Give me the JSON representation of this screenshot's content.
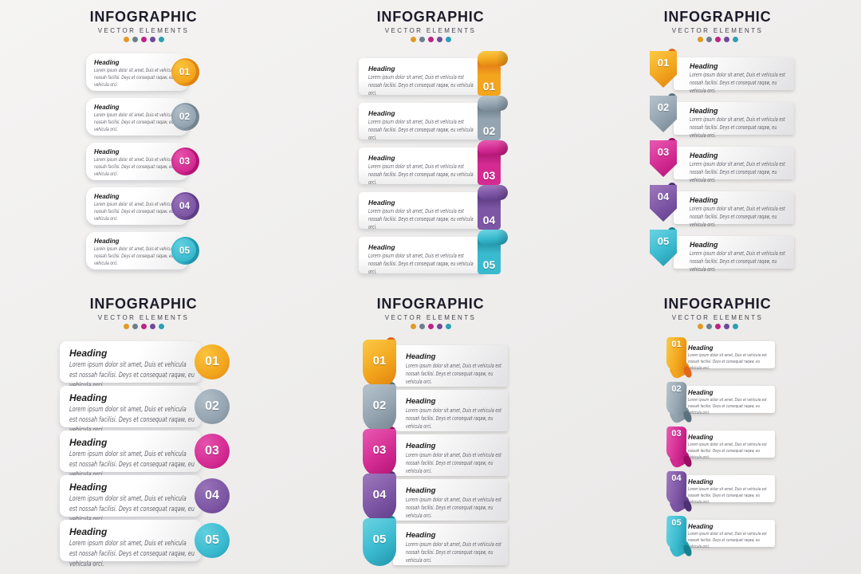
{
  "palette": [
    {
      "name": "orange",
      "main": "#F2A51D",
      "dark": "#E0800F",
      "light": "#FAC33E",
      "deep": "#E2661B",
      "dot": "#E29A26"
    },
    {
      "name": "slate",
      "main": "#94A4B1",
      "dark": "#73848F",
      "light": "#B0BEC7",
      "deep": "#5C6F7C",
      "dot": "#6B7F8C"
    },
    {
      "name": "magenta",
      "main": "#D42B92",
      "dark": "#B01374",
      "light": "#E452AC",
      "deep": "#9A0F63",
      "dot": "#BD2483"
    },
    {
      "name": "purple",
      "main": "#7D56A5",
      "dark": "#5E3D86",
      "light": "#9873B8",
      "deep": "#4E3172",
      "dot": "#6F4B97"
    },
    {
      "name": "teal",
      "main": "#3ABACF",
      "dark": "#2094AA",
      "light": "#62CFDF",
      "deep": "#17818F",
      "dot": "#2E9EB3"
    }
  ],
  "panels": [
    {
      "title": "INFOGRAPHIC",
      "subtitle": "VECTOR ELEMENTS",
      "items": [
        {
          "number": "01",
          "heading": "Heading",
          "body": "Lorem ipsum dolor sit amet, Duis et vehicula est nossah facilisi. Deys et consequat raqaw, eu vehicula orci."
        },
        {
          "number": "02",
          "heading": "Heading",
          "body": "Lorem ipsum dolor sit amet, Duis et vehicula est nossah facilisi. Deys et consequat raqaw, eu vehicula orci."
        },
        {
          "number": "03",
          "heading": "Heading",
          "body": "Lorem ipsum dolor sit amet, Duis et vehicula est nossah facilisi. Deys et consequat raqaw, eu vehicula orci."
        },
        {
          "number": "04",
          "heading": "Heading",
          "body": "Lorem ipsum dolor sit amet, Duis et vehicula est nossah facilisi. Deys et consequat raqaw, eu vehicula orci."
        },
        {
          "number": "05",
          "heading": "Heading",
          "body": "Lorem ipsum dolor sit amet, Duis et vehicula est nossah facilisi. Deys et consequat raqaw, eu vehicula orci."
        }
      ]
    },
    {
      "title": "INFOGRAPHIC",
      "subtitle": "VECTOR ELEMENTS",
      "items": [
        {
          "number": "01",
          "heading": "Heading",
          "body": "Lorem ipsum dolor sit amet, Duis et vehicula est nossah facilisi. Deys et consequat raqaw, eu vehicula orci."
        },
        {
          "number": "02",
          "heading": "Heading",
          "body": "Lorem ipsum dolor sit amet, Duis et vehicula est nossah facilisi. Deys et consequat raqaw, eu vehicula orci."
        },
        {
          "number": "03",
          "heading": "Heading",
          "body": "Lorem ipsum dolor sit amet, Duis et vehicula est nossah facilisi. Deys et consequat raqaw, eu vehicula orci."
        },
        {
          "number": "04",
          "heading": "Heading",
          "body": "Lorem ipsum dolor sit amet, Duis et vehicula est nossah facilisi. Deys et consequat raqaw, eu vehicula orci."
        },
        {
          "number": "05",
          "heading": "Heading",
          "body": "Lorem ipsum dolor sit amet, Duis et vehicula est nossah facilisi. Deys et consequat raqaw, eu vehicula orci."
        }
      ]
    },
    {
      "title": "INFOGRAPHIC",
      "subtitle": "VECTOR ELEMENTS",
      "items": [
        {
          "number": "01",
          "heading": "Heading",
          "body": "Lorem ipsum dolor sit amet, Duis et vehicula est nossah facilisi. Deys et consequat raqaw, eu vehicula orci."
        },
        {
          "number": "02",
          "heading": "Heading",
          "body": "Lorem ipsum dolor sit amet, Duis et vehicula est nossah facilisi. Deys et consequat raqaw, eu vehicula orci."
        },
        {
          "number": "03",
          "heading": "Heading",
          "body": "Lorem ipsum dolor sit amet, Duis et vehicula est nossah facilisi. Deys et consequat raqaw, eu vehicula orci."
        },
        {
          "number": "04",
          "heading": "Heading",
          "body": "Lorem ipsum dolor sit amet, Duis et vehicula est nossah facilisi. Deys et consequat raqaw, eu vehicula orci."
        },
        {
          "number": "05",
          "heading": "Heading",
          "body": "Lorem ipsum dolor sit amet, Duis et vehicula est nossah facilisi. Deys et consequat raqaw, eu vehicula orci."
        }
      ]
    },
    {
      "title": "INFOGRAPHIC",
      "subtitle": "VECTOR ELEMENTS",
      "items": [
        {
          "number": "01",
          "heading": "Heading",
          "body": "Lorem ipsum dolor sit amet, Duis et vehicula est nossah facilisi. Deys et consequat raqaw, eu vehicula orci."
        },
        {
          "number": "02",
          "heading": "Heading",
          "body": "Lorem ipsum dolor sit amet, Duis et vehicula est nossah facilisi. Deys et consequat raqaw, eu vehicula orci."
        },
        {
          "number": "03",
          "heading": "Heading",
          "body": "Lorem ipsum dolor sit amet, Duis et vehicula est nossah facilisi. Deys et consequat raqaw, eu vehicula orci."
        },
        {
          "number": "04",
          "heading": "Heading",
          "body": "Lorem ipsum dolor sit amet, Duis et vehicula est nossah facilisi. Deys et consequat raqaw, eu vehicula orci."
        },
        {
          "number": "05",
          "heading": "Heading",
          "body": "Lorem ipsum dolor sit amet, Duis et vehicula est nossah facilisi. Deys et consequat raqaw, eu vehicula orci."
        }
      ]
    },
    {
      "title": "INFOGRAPHIC",
      "subtitle": "VECTOR ELEMENTS",
      "items": [
        {
          "number": "01",
          "heading": "Heading",
          "body": "Lorem ipsum dolor sit amet, Duis et vehicula est nossah facilisi. Deys et consequat raqaw, eu vehicula orci."
        },
        {
          "number": "02",
          "heading": "Heading",
          "body": "Lorem ipsum dolor sit amet, Duis et vehicula est nossah facilisi. Deys et consequat raqaw, eu vehicula orci."
        },
        {
          "number": "03",
          "heading": "Heading",
          "body": "Lorem ipsum dolor sit amet, Duis et vehicula est nossah facilisi. Deys et consequat raqaw, eu vehicula orci."
        },
        {
          "number": "04",
          "heading": "Heading",
          "body": "Lorem ipsum dolor sit amet, Duis et vehicula est nossah facilisi. Deys et consequat raqaw, eu vehicula orci."
        },
        {
          "number": "05",
          "heading": "Heading",
          "body": "Lorem ipsum dolor sit amet, Duis et vehicula est nossah facilisi. Deys et consequat raqaw, eu vehicula orci."
        }
      ]
    },
    {
      "title": "INFOGRAPHIC",
      "subtitle": "VECTOR ELEMENTS",
      "items": [
        {
          "number": "01",
          "heading": "Heading",
          "body": "Lorem ipsum dolor sit amet, Duis et vehicula est nossah facilisi. Deys et consequat raqaw, eu vehicula orci."
        },
        {
          "number": "02",
          "heading": "Heading",
          "body": "Lorem ipsum dolor sit amet, Duis et vehicula est nossah facilisi. Deys et consequat raqaw, eu vehicula orci."
        },
        {
          "number": "03",
          "heading": "Heading",
          "body": "Lorem ipsum dolor sit amet, Duis et vehicula est nossah facilisi. Deys et consequat raqaw, eu vehicula orci."
        },
        {
          "number": "04",
          "heading": "Heading",
          "body": "Lorem ipsum dolor sit amet, Duis et vehicula est nossah facilisi. Deys et consequat raqaw, eu vehicula orci."
        },
        {
          "number": "05",
          "heading": "Heading",
          "body": "Lorem ipsum dolor sit amet, Duis et vehicula est nossah facilisi. Deys et consequat raqaw, eu vehicula orci."
        }
      ]
    }
  ]
}
